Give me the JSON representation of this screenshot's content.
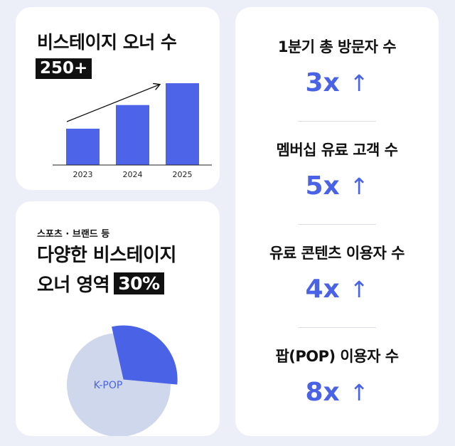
{
  "owners_card": {
    "title": "비스테이지 오너 수",
    "badge": "250+"
  },
  "area_card": {
    "subtitle": "스포츠 · 브랜드 등",
    "title_line1": "다양한 비스테이지",
    "title_line2": "오너 영역",
    "badge": "30%"
  },
  "stats": [
    {
      "label": "1분기 총 방문자 수",
      "value": "3x",
      "arrow": "↑"
    },
    {
      "label": "멤버십 유료 고객 수",
      "value": "5x",
      "arrow": "↑"
    },
    {
      "label": "유료 콘텐츠 이용자 수",
      "value": "4x",
      "arrow": "↑"
    },
    {
      "label": "팝(POP) 이용자 수",
      "value": "8x",
      "arrow": "↑"
    }
  ],
  "colors": {
    "accent": "#4a63e6",
    "bar": "#4d63e8",
    "pie_main": "#cfd7ec",
    "pie_highlight": "#4a63e6",
    "background": "#eceef8"
  },
  "chart_data": [
    {
      "type": "bar",
      "categories": [
        "2023",
        "2024",
        "2025"
      ],
      "values": [
        100,
        165,
        225
      ],
      "trend_arrow": true,
      "grid": false,
      "legend": "none"
    },
    {
      "type": "pie",
      "slices": [
        {
          "label": "K-POP",
          "value": 70
        },
        {
          "label": "",
          "value": 30
        }
      ],
      "legend": "none"
    }
  ]
}
